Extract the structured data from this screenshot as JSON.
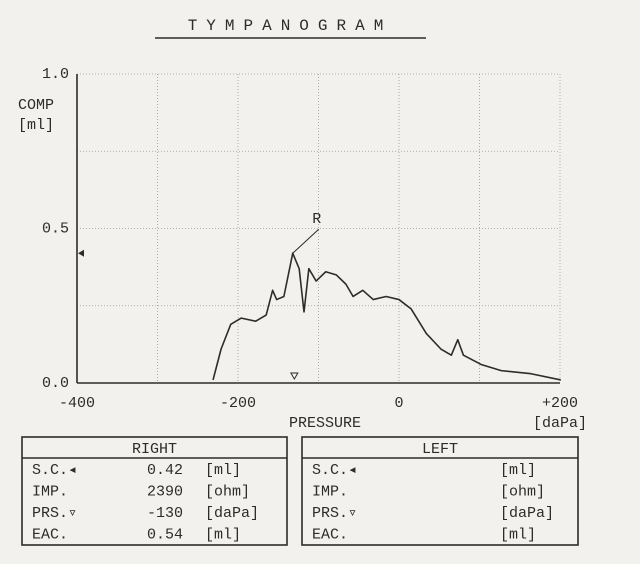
{
  "chart_data": {
    "type": "line",
    "title": "TYMPANOGRAM",
    "y_label": [
      "COMP",
      "[ml]"
    ],
    "x_label": "PRESSURE",
    "x_unit": "[daPa]",
    "annotation": "R",
    "x": [
      -231,
      -221,
      -209,
      -196,
      -178,
      -165,
      -157,
      -152,
      -143,
      -132,
      -124,
      -118,
      -112,
      -103,
      -91,
      -78,
      -66,
      -57,
      -45,
      -32,
      -16,
      0,
      15,
      34,
      52,
      65,
      73,
      80,
      102,
      127,
      164,
      201
    ],
    "values": [
      0.01,
      0.11,
      0.19,
      0.21,
      0.2,
      0.22,
      0.3,
      0.27,
      0.28,
      0.42,
      0.37,
      0.23,
      0.37,
      0.33,
      0.36,
      0.35,
      0.32,
      0.28,
      0.3,
      0.27,
      0.28,
      0.27,
      0.24,
      0.16,
      0.11,
      0.09,
      0.14,
      0.09,
      0.06,
      0.04,
      0.03,
      0.01
    ],
    "color": "#2c2c2c",
    "xlim": [
      -400,
      200
    ],
    "ylim": [
      0,
      1
    ],
    "xticks": [
      -400,
      -200,
      0,
      {
        "value": 200,
        "label": "+200"
      }
    ],
    "yticks": [
      {
        "value": 0,
        "label": "0.0"
      },
      {
        "value": 0.5,
        "label": "0.5"
      },
      {
        "value": 1,
        "label": "1.0"
      }
    ],
    "xgrid": [
      -300,
      -100,
      100
    ],
    "ygrid": [
      0.25,
      0.75
    ],
    "grid": true
  },
  "tables": [
    {
      "title": "RIGHT",
      "rows": [
        {
          "label": "S.C.◂",
          "value": 0.42,
          "unit": "[ml]"
        },
        {
          "label": "IMP.",
          "value": 2390,
          "unit": "[ohm]"
        },
        {
          "label": "PRS.▿",
          "value": -130,
          "unit": "[daPa]"
        },
        {
          "label": "EAC.",
          "value": 0.54,
          "unit": "[ml]"
        }
      ]
    },
    {
      "title": "LEFT",
      "rows": [
        {
          "label": "S.C.◂",
          "unit": "[ml]"
        },
        {
          "label": "IMP.",
          "unit": "[ohm]"
        },
        {
          "label": "PRS.▿",
          "unit": "[daPa]"
        },
        {
          "label": "EAC.",
          "unit": "[ml]"
        }
      ]
    }
  ]
}
